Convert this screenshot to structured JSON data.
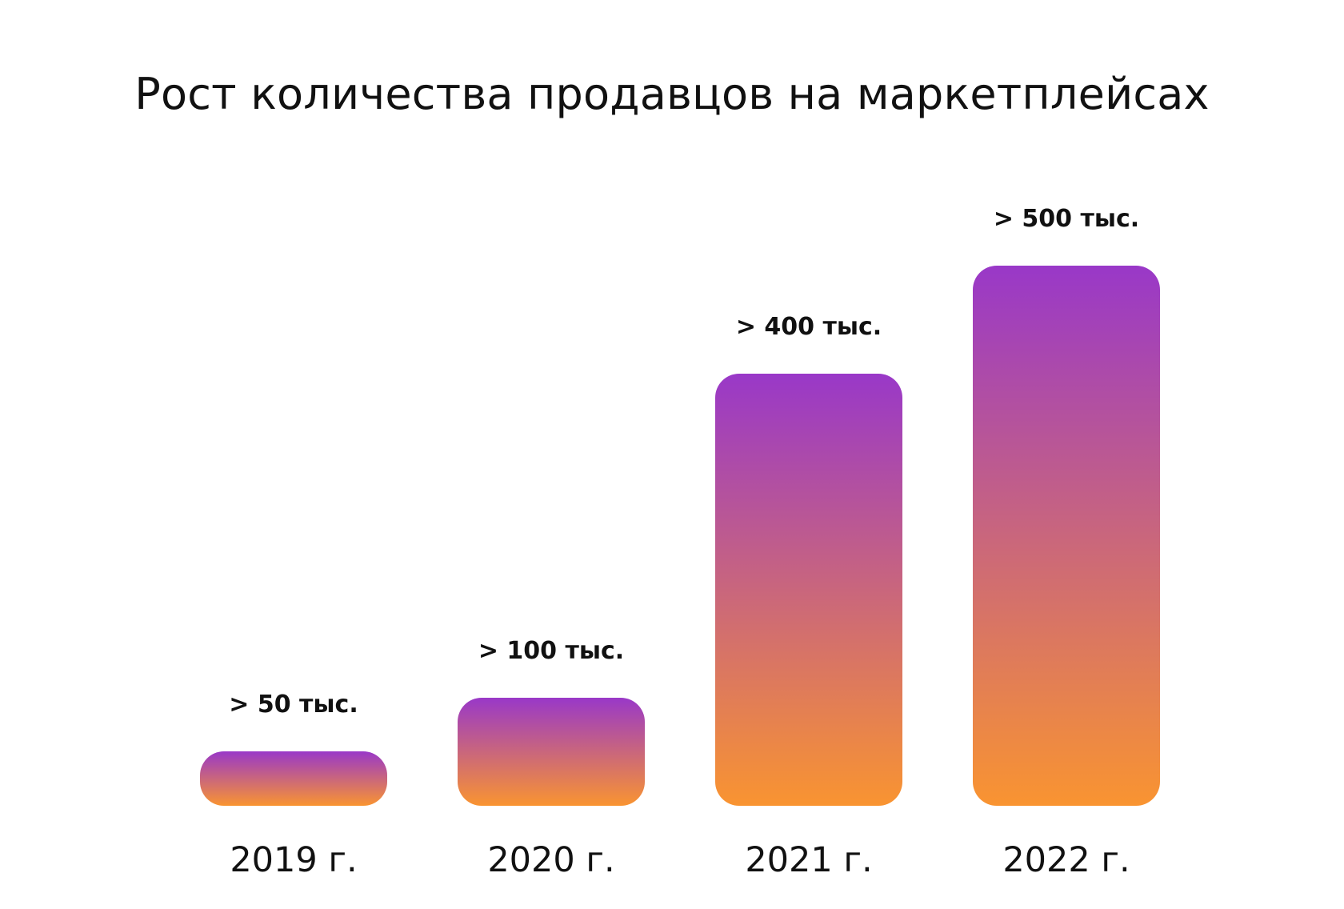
{
  "chart_data": {
    "type": "bar",
    "title": "Рост количества продавцов на маркетплейсах",
    "categories": [
      "2019 г.",
      "2020 г.",
      "2021 г.",
      "2022 г."
    ],
    "values": [
      50000,
      100000,
      400000,
      500000
    ],
    "value_labels": [
      "> 50 тыс.",
      "> 100 тыс.",
      "> 400 тыс.",
      "> 500 тыс."
    ],
    "unit": "тыс.",
    "xlabel": "",
    "ylabel": "",
    "ylim": [
      0,
      500000
    ],
    "grid": false,
    "legend": "none",
    "colors": {
      "bar_top": "#9938C8",
      "bar_bottom": "#F99431"
    }
  }
}
